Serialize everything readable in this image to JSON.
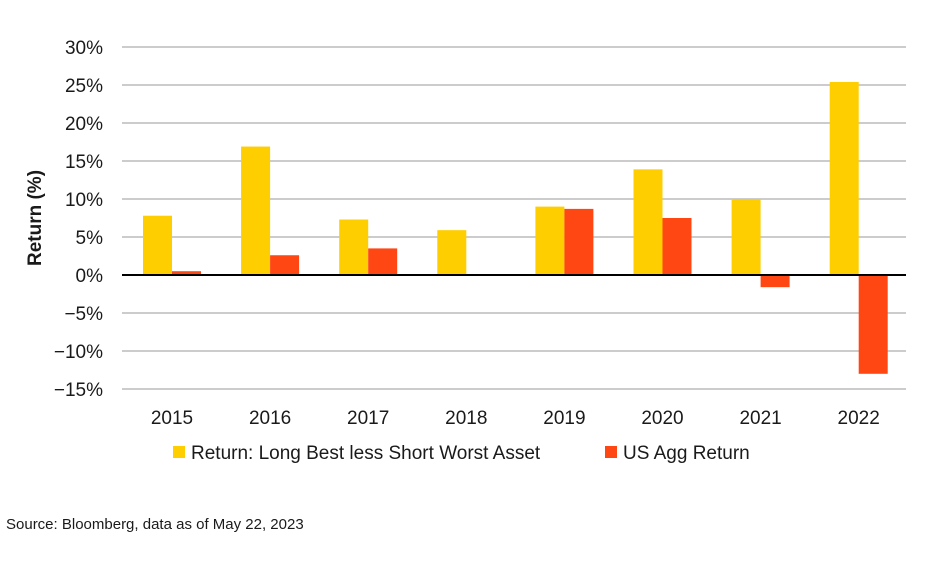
{
  "chart_data": {
    "type": "bar",
    "title": "",
    "xlabel": "",
    "ylabel": "Return (%)",
    "ylim": [
      -15,
      30
    ],
    "yticks": [
      30,
      25,
      20,
      15,
      10,
      5,
      0,
      -5,
      -10,
      -15
    ],
    "ytick_labels": [
      "30%",
      "25%",
      "20%",
      "15%",
      "10%",
      "5%",
      "0%",
      "−5%",
      "−10%",
      "−15%"
    ],
    "grid": true,
    "legend_position": "bottom",
    "categories": [
      "2015",
      "2016",
      "2017",
      "2018",
      "2019",
      "2020",
      "2021",
      "2022"
    ],
    "series": [
      {
        "name": "Return: Long Best less Short Worst Asset",
        "color": "#FFCE00",
        "values": [
          7.8,
          16.9,
          7.3,
          5.9,
          9.0,
          13.9,
          10.0,
          25.4
        ]
      },
      {
        "name": "US Agg Return",
        "color": "#FF4713",
        "values": [
          0.5,
          2.6,
          3.5,
          0.0,
          8.7,
          7.5,
          -1.6,
          -13.0
        ]
      }
    ]
  },
  "source": "Source: Bloomberg, data as of May 22, 2023"
}
